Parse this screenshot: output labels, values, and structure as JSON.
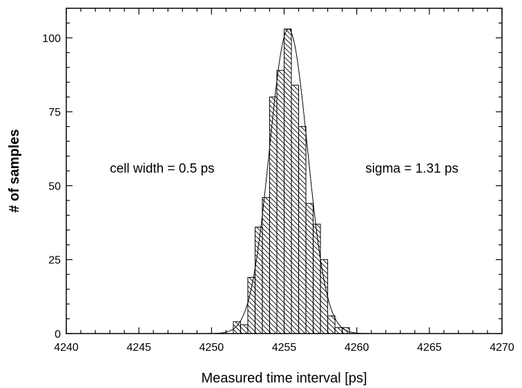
{
  "chart_data": {
    "type": "bar",
    "xlabel": "Measured time interval [ps]",
    "ylabel": "# of samples",
    "xlim": [
      4240,
      4270
    ],
    "ylim": [
      0,
      110
    ],
    "x_ticks": [
      4240,
      4245,
      4250,
      4255,
      4260,
      4265,
      4270
    ],
    "y_ticks": [
      0,
      25,
      50,
      75,
      100
    ],
    "bin_width": 0.5,
    "bins_left_edge": [
      4251.5,
      4252.0,
      4252.5,
      4253.0,
      4253.5,
      4254.0,
      4254.5,
      4255.0,
      4255.5,
      4256.0,
      4256.5,
      4257.0,
      4257.5,
      4258.0,
      4258.5,
      4259.0
    ],
    "counts": [
      4,
      3,
      19,
      36,
      46,
      80,
      89,
      103,
      84,
      70,
      44,
      37,
      25,
      6,
      2,
      2
    ],
    "fit_curve": {
      "type": "gaussian",
      "center": 4255.3,
      "peak": 103,
      "sigma_ps": 1.31
    },
    "annotations": [
      {
        "text": "cell width = 0.5 ps",
        "at": [
          4243.0,
          56
        ]
      },
      {
        "text": "sigma = 1.31 ps",
        "at": [
          4260.6,
          56
        ]
      }
    ],
    "grid": false,
    "legend": "none",
    "bar_fill": "diagonal-hatch",
    "colors": {
      "bars": "#000000",
      "background": "#ffffff"
    }
  }
}
